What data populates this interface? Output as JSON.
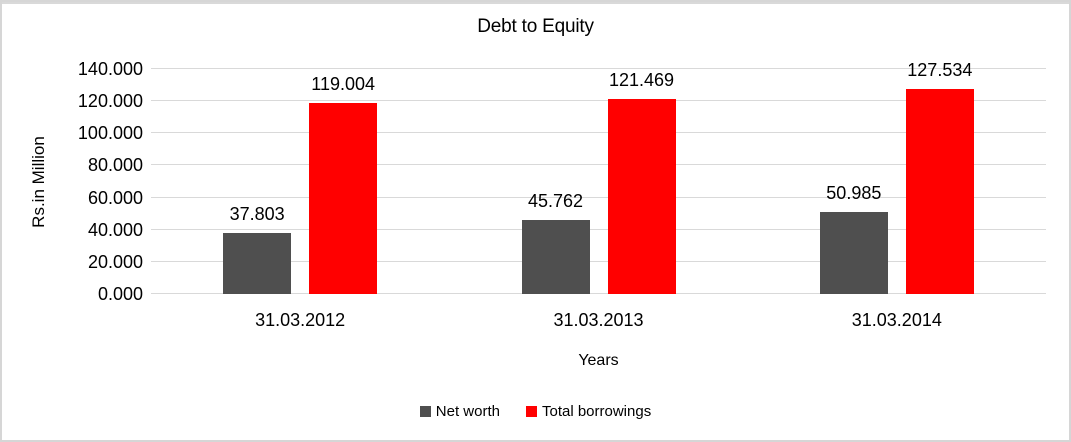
{
  "chart_data": {
    "type": "bar",
    "title": "Debt to Equity",
    "categories": [
      "31.03.2012",
      "31.03.2013",
      "31.03.2014"
    ],
    "series": [
      {
        "name": "Net worth",
        "color": "#4f4f4f",
        "values": [
          37.803,
          45.762,
          50.985
        ]
      },
      {
        "name": "Total borrowings",
        "color": "#ff0000",
        "values": [
          119.004,
          121.469,
          127.534
        ]
      }
    ],
    "xlabel": "Years",
    "ylabel": "Rs.in Million",
    "ylim": [
      0,
      140
    ],
    "ytick_step": 20,
    "ytick_labels": [
      "0.000",
      "20.000",
      "40.000",
      "60.000",
      "80.000",
      "100.000",
      "120.000",
      "140.000"
    ],
    "value_label_decimals": 3,
    "data_labels": true,
    "grid": true,
    "legend_position": "bottom",
    "colors": {
      "gridline": "#d9d9d9",
      "frame_border": "#d6d6d6",
      "background": "#ffffff",
      "text": "#000000"
    }
  }
}
